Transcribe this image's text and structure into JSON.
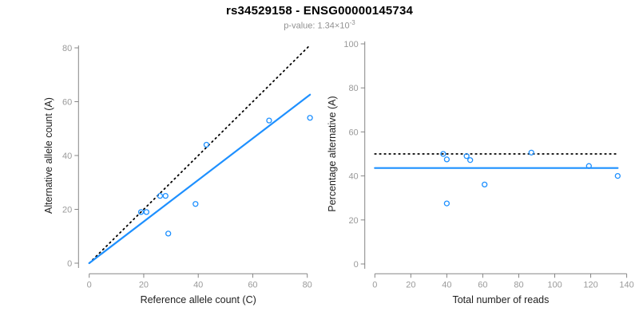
{
  "header": {
    "title": "rs34529158 - ENSG00000145734",
    "pvalue_text": "p-value: 1.34×10",
    "pvalue_exponent": "-3"
  },
  "colors": {
    "accent_blue": "#1E90FF",
    "identity_black": "#000000",
    "axis_line": "#858585",
    "tick_label": "#9a9a9a",
    "axis_title": "#1f1f1f",
    "background": "#ffffff"
  },
  "chart_data": [
    {
      "name": "allele-count-scatter",
      "type": "scatter",
      "title": "",
      "xlabel": "Reference allele count (C)",
      "ylabel": "Alternative allele count (A)",
      "xlim": [
        0,
        80
      ],
      "ylim": [
        0,
        80
      ],
      "xticks": [
        0,
        20,
        40,
        60,
        80
      ],
      "yticks": [
        0,
        20,
        40,
        60,
        80
      ],
      "grid": false,
      "legend": "none",
      "points": [
        [
          19,
          19
        ],
        [
          21,
          19
        ],
        [
          26,
          25
        ],
        [
          28,
          25
        ],
        [
          29,
          11
        ],
        [
          39,
          22
        ],
        [
          43,
          44
        ],
        [
          66,
          53
        ],
        [
          81,
          54
        ]
      ],
      "lines": [
        {
          "name": "identity-line",
          "dash": "dotted",
          "color": "#000000",
          "x1": 0,
          "y1": 0,
          "x2": 81,
          "y2": 81
        },
        {
          "name": "fit-line",
          "dash": "solid",
          "color": "#1E90FF",
          "x1": 0,
          "y1": 0,
          "x2": 81,
          "y2": 62.6
        }
      ]
    },
    {
      "name": "percentage-scatter",
      "type": "scatter",
      "title": "",
      "xlabel": "Total number of reads",
      "ylabel": "Percentage alternative (A)",
      "xlim": [
        0,
        140
      ],
      "ylim": [
        0,
        100
      ],
      "xticks": [
        0,
        20,
        40,
        60,
        80,
        100,
        120,
        140
      ],
      "yticks": [
        0,
        20,
        40,
        60,
        80,
        100
      ],
      "grid": false,
      "legend": "none",
      "points": [
        [
          38,
          50
        ],
        [
          40,
          47.5
        ],
        [
          51,
          49
        ],
        [
          53,
          47.2
        ],
        [
          40,
          27.5
        ],
        [
          61,
          36.1
        ],
        [
          87,
          50.6
        ],
        [
          119,
          44.5
        ],
        [
          135,
          40
        ]
      ],
      "lines": [
        {
          "name": "expected-50-line",
          "dash": "dotted",
          "color": "#000000",
          "x1": 0,
          "y1": 50,
          "x2": 134,
          "y2": 50
        },
        {
          "name": "mean-percentage-line",
          "dash": "solid",
          "color": "#1E90FF",
          "x1": 0,
          "y1": 43.6,
          "x2": 135,
          "y2": 43.6
        }
      ]
    }
  ]
}
